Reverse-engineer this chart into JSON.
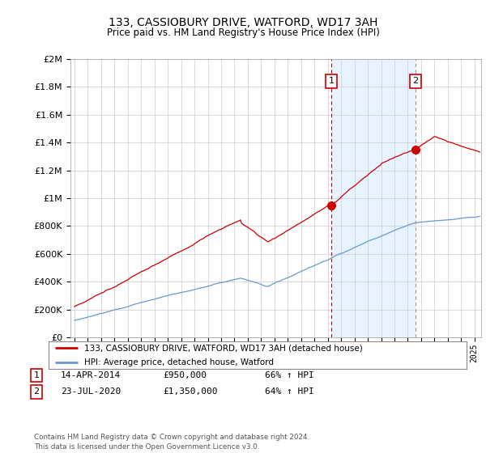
{
  "title": "133, CASSIOBURY DRIVE, WATFORD, WD17 3AH",
  "subtitle": "Price paid vs. HM Land Registry's House Price Index (HPI)",
  "red_label": "133, CASSIOBURY DRIVE, WATFORD, WD17 3AH (detached house)",
  "blue_label": "HPI: Average price, detached house, Watford",
  "point1_label": "1",
  "point1_date": "14-APR-2014",
  "point1_price": "£950,000",
  "point1_hpi": "66% ↑ HPI",
  "point2_label": "2",
  "point2_date": "23-JUL-2020",
  "point2_price": "£1,350,000",
  "point2_hpi": "64% ↑ HPI",
  "footer": "Contains HM Land Registry data © Crown copyright and database right 2024.\nThis data is licensed under the Open Government Licence v3.0.",
  "ylim": [
    0,
    2000000
  ],
  "yticks": [
    0,
    200000,
    400000,
    600000,
    800000,
    1000000,
    1200000,
    1400000,
    1600000,
    1800000,
    2000000
  ],
  "xlim_start": 1994.7,
  "xlim_end": 2025.5,
  "red_color": "#cc0000",
  "blue_color": "#6699cc",
  "shaded_color": "#ddeeff",
  "vline1_x": 2014.28,
  "vline2_x": 2020.56,
  "point1_x": 2014.28,
  "point1_y": 950000,
  "point2_x": 2020.56,
  "point2_y": 1350000,
  "bg_color": "#ffffff",
  "grid_color": "#cccccc",
  "vline2_style": "dashed"
}
